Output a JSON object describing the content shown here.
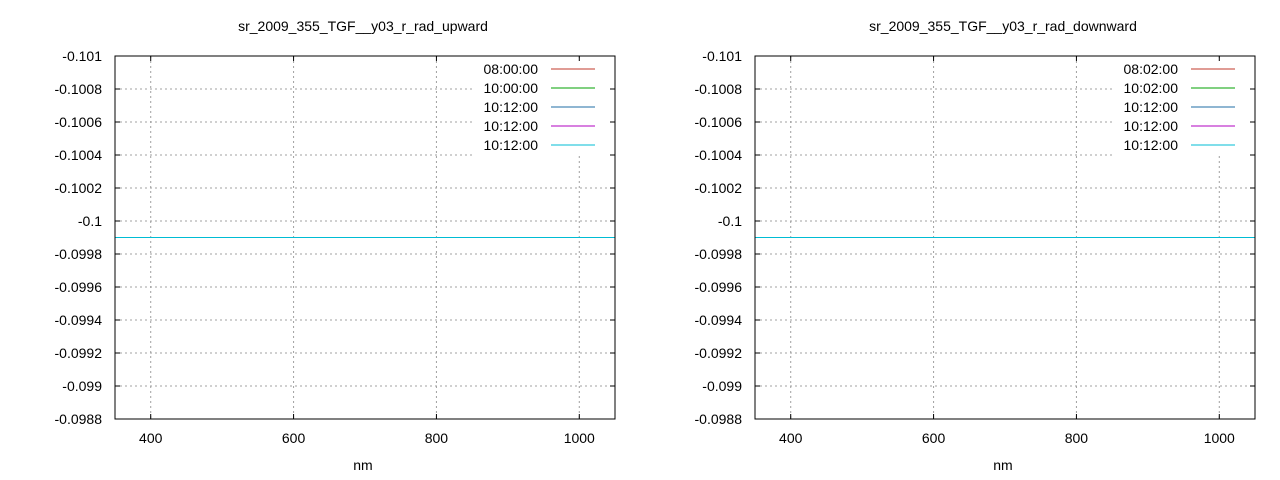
{
  "chart_data": [
    {
      "type": "line",
      "title": "sr_2009_355_TGF__y03_r_rad_upward",
      "xlabel": "nm",
      "ylabel": "",
      "xlim": [
        350,
        1050
      ],
      "ylim": [
        -0.101,
        -0.0988
      ],
      "xticks": [
        400,
        600,
        800,
        1000
      ],
      "xtick_labels": [
        "400",
        "600",
        "800",
        "1000"
      ],
      "yticks": [
        -0.101,
        -0.1008,
        -0.1006,
        -0.1004,
        -0.1002,
        -0.1,
        -0.0998,
        -0.0996,
        -0.0994,
        -0.0992,
        -0.099,
        -0.0988
      ],
      "ytick_labels": [
        "-0.101",
        "-0.1008",
        "-0.1006",
        "-0.1004",
        "-0.1002",
        "-0.1",
        "-0.0998",
        "-0.0996",
        "-0.0994",
        "-0.0992",
        "-0.099",
        "-0.0988"
      ],
      "y_inverted": true,
      "grid": true,
      "legend_position": "top-right",
      "series": [
        {
          "name": "08:00:00",
          "color": "#c0392b",
          "x": [
            350,
            1050
          ],
          "y": [
            -0.0999,
            -0.0999
          ]
        },
        {
          "name": "10:00:00",
          "color": "#00a000",
          "x": [
            350,
            1050
          ],
          "y": [
            -0.0999,
            -0.0999
          ]
        },
        {
          "name": "10:12:00",
          "color": "#1f6ea6",
          "x": [
            350,
            1050
          ],
          "y": [
            -0.0999,
            -0.0999
          ]
        },
        {
          "name": "10:12:00",
          "color": "#b000c0",
          "x": [
            350,
            1050
          ],
          "y": [
            -0.0999,
            -0.0999
          ]
        },
        {
          "name": "10:12:00",
          "color": "#00bcd4",
          "x": [
            350,
            1050
          ],
          "y": [
            -0.0999,
            -0.0999
          ]
        }
      ]
    },
    {
      "type": "line",
      "title": "sr_2009_355_TGF__y03_r_rad_downward",
      "xlabel": "nm",
      "ylabel": "",
      "xlim": [
        350,
        1050
      ],
      "ylim": [
        -0.101,
        -0.0988
      ],
      "xticks": [
        400,
        600,
        800,
        1000
      ],
      "xtick_labels": [
        "400",
        "600",
        "800",
        "1000"
      ],
      "yticks": [
        -0.101,
        -0.1008,
        -0.1006,
        -0.1004,
        -0.1002,
        -0.1,
        -0.0998,
        -0.0996,
        -0.0994,
        -0.0992,
        -0.099,
        -0.0988
      ],
      "ytick_labels": [
        "-0.101",
        "-0.1008",
        "-0.1006",
        "-0.1004",
        "-0.1002",
        "-0.1",
        "-0.0998",
        "-0.0996",
        "-0.0994",
        "-0.0992",
        "-0.099",
        "-0.0988"
      ],
      "y_inverted": true,
      "grid": true,
      "legend_position": "top-right",
      "series": [
        {
          "name": "08:02:00",
          "color": "#c0392b",
          "x": [
            350,
            1050
          ],
          "y": [
            -0.0999,
            -0.0999
          ]
        },
        {
          "name": "10:02:00",
          "color": "#00a000",
          "x": [
            350,
            1050
          ],
          "y": [
            -0.0999,
            -0.0999
          ]
        },
        {
          "name": "10:12:00",
          "color": "#1f6ea6",
          "x": [
            350,
            1050
          ],
          "y": [
            -0.0999,
            -0.0999
          ]
        },
        {
          "name": "10:12:00",
          "color": "#b000c0",
          "x": [
            350,
            1050
          ],
          "y": [
            -0.0999,
            -0.0999
          ]
        },
        {
          "name": "10:12:00",
          "color": "#00bcd4",
          "x": [
            350,
            1050
          ],
          "y": [
            -0.0999,
            -0.0999
          ]
        }
      ]
    }
  ]
}
